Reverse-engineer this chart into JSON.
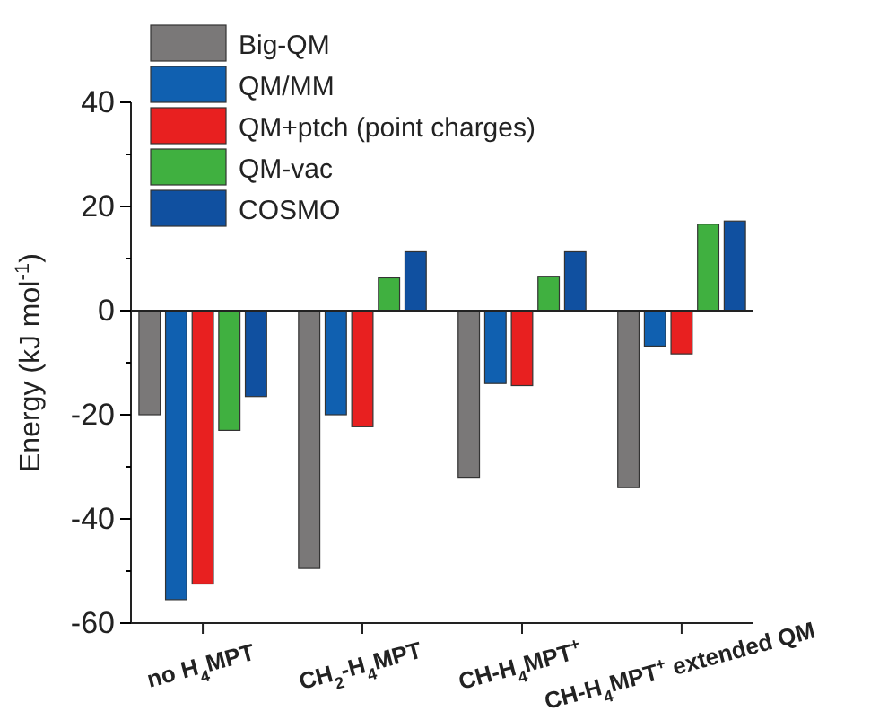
{
  "chart_data": {
    "type": "bar",
    "ylabel": "Energy (kJ mol$^{-1}$)",
    "categories": [
      "no H$_{4}$MPT",
      "CH$_{2}$-H$_{4}$MPT",
      "CH-H$_{4}$MPT$^{+}$",
      "CH-H$_{4}$MPT$^{+}$ extended QM"
    ],
    "series": [
      {
        "name": "Big-QM",
        "color": "#7a7878",
        "values": [
          -20,
          -49.5,
          -32,
          -34
        ]
      },
      {
        "name": "QM/MM",
        "color": "#1060b0",
        "values": [
          -55.5,
          -20,
          -14,
          -6.8
        ]
      },
      {
        "name": "QM+ptch (point charges)",
        "color": "#e82020",
        "values": [
          -52.5,
          -22.3,
          -14.4,
          -8.3
        ]
      },
      {
        "name": "QM-vac",
        "color": "#40b040",
        "values": [
          -23,
          6.3,
          6.6,
          16.6
        ]
      },
      {
        "name": "COSMO",
        "color": "#1050a0",
        "values": [
          -16.5,
          11.3,
          11.3,
          17.2
        ]
      }
    ],
    "ylim": [
      -60,
      40
    ],
    "yticks": [
      -60,
      {
        "value": -50,
        "label": null
      },
      -40,
      {
        "value": -30,
        "label": null
      },
      -20,
      {
        "value": -10,
        "label": null
      },
      0,
      {
        "value": 10,
        "label": null
      },
      20,
      {
        "value": 30,
        "label": null
      },
      40
    ],
    "legend": "top left"
  }
}
